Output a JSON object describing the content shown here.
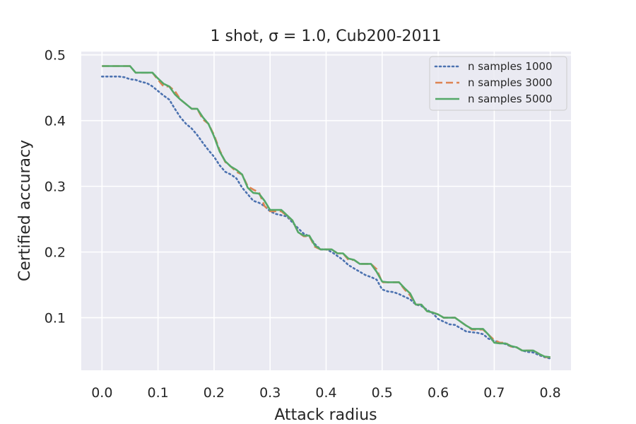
{
  "chart_data": {
    "type": "line",
    "title": "1 shot, σ = 1.0, Cub200-2011",
    "xlabel": "Attack radius",
    "ylabel": "Certified accuracy",
    "xlim": [
      -0.037,
      0.837
    ],
    "ylim": [
      0.02,
      0.505
    ],
    "xticks": [
      "0.0",
      "0.1",
      "0.2",
      "0.3",
      "0.4",
      "0.5",
      "0.6",
      "0.7",
      "0.8"
    ],
    "yticks": [
      "0.1",
      "0.2",
      "0.3",
      "0.4",
      "0.5"
    ],
    "grid": true,
    "legend_position": "top-right",
    "series": [
      {
        "name": "n samples 1000",
        "color": "#4c72b0",
        "style": "dotted",
        "x": [
          0.0,
          0.01,
          0.02,
          0.03,
          0.04,
          0.05,
          0.06,
          0.07,
          0.08,
          0.09,
          0.1,
          0.11,
          0.12,
          0.13,
          0.14,
          0.15,
          0.16,
          0.17,
          0.18,
          0.19,
          0.2,
          0.21,
          0.22,
          0.23,
          0.24,
          0.25,
          0.26,
          0.27,
          0.28,
          0.29,
          0.3,
          0.31,
          0.32,
          0.33,
          0.34,
          0.35,
          0.36,
          0.37,
          0.38,
          0.39,
          0.4,
          0.41,
          0.42,
          0.43,
          0.44,
          0.45,
          0.46,
          0.47,
          0.48,
          0.49,
          0.5,
          0.51,
          0.52,
          0.53,
          0.54,
          0.55,
          0.56,
          0.57,
          0.58,
          0.59,
          0.6,
          0.61,
          0.62,
          0.63,
          0.64,
          0.65,
          0.66,
          0.67,
          0.68,
          0.69,
          0.7,
          0.71,
          0.72,
          0.73,
          0.74,
          0.75,
          0.76,
          0.77,
          0.78,
          0.79,
          0.8
        ],
        "y": [
          0.467,
          0.467,
          0.467,
          0.467,
          0.466,
          0.463,
          0.462,
          0.459,
          0.457,
          0.452,
          0.445,
          0.438,
          0.432,
          0.418,
          0.405,
          0.395,
          0.388,
          0.378,
          0.366,
          0.355,
          0.345,
          0.332,
          0.322,
          0.318,
          0.312,
          0.298,
          0.288,
          0.278,
          0.275,
          0.27,
          0.262,
          0.258,
          0.256,
          0.254,
          0.245,
          0.236,
          0.228,
          0.224,
          0.212,
          0.204,
          0.204,
          0.2,
          0.194,
          0.188,
          0.18,
          0.175,
          0.17,
          0.165,
          0.162,
          0.158,
          0.143,
          0.14,
          0.139,
          0.136,
          0.132,
          0.128,
          0.12,
          0.118,
          0.112,
          0.107,
          0.098,
          0.094,
          0.09,
          0.089,
          0.084,
          0.079,
          0.078,
          0.077,
          0.075,
          0.068,
          0.065,
          0.062,
          0.06,
          0.056,
          0.055,
          0.05,
          0.048,
          0.047,
          0.043,
          0.04,
          0.038
        ]
      },
      {
        "name": "n samples 3000",
        "color": "#dd8452",
        "style": "dashed",
        "x": [
          0.0,
          0.01,
          0.02,
          0.03,
          0.04,
          0.05,
          0.06,
          0.07,
          0.08,
          0.09,
          0.1,
          0.11,
          0.12,
          0.13,
          0.14,
          0.15,
          0.16,
          0.17,
          0.18,
          0.19,
          0.2,
          0.21,
          0.22,
          0.23,
          0.24,
          0.25,
          0.26,
          0.27,
          0.28,
          0.29,
          0.3,
          0.31,
          0.32,
          0.33,
          0.34,
          0.35,
          0.36,
          0.37,
          0.38,
          0.39,
          0.4,
          0.41,
          0.42,
          0.43,
          0.44,
          0.45,
          0.46,
          0.47,
          0.48,
          0.49,
          0.5,
          0.51,
          0.52,
          0.53,
          0.54,
          0.55,
          0.56,
          0.57,
          0.58,
          0.59,
          0.6,
          0.61,
          0.62,
          0.63,
          0.64,
          0.65,
          0.66,
          0.67,
          0.68,
          0.69,
          0.7,
          0.71,
          0.72,
          0.73,
          0.74,
          0.75,
          0.76,
          0.77,
          0.78,
          0.79,
          0.8
        ],
        "y": [
          0.483,
          0.483,
          0.483,
          0.483,
          0.483,
          0.483,
          0.473,
          0.473,
          0.473,
          0.473,
          0.462,
          0.452,
          0.452,
          0.445,
          0.432,
          0.425,
          0.418,
          0.418,
          0.402,
          0.395,
          0.378,
          0.355,
          0.337,
          0.33,
          0.322,
          0.318,
          0.3,
          0.295,
          0.291,
          0.27,
          0.262,
          0.262,
          0.262,
          0.255,
          0.248,
          0.23,
          0.224,
          0.224,
          0.208,
          0.204,
          0.204,
          0.204,
          0.198,
          0.198,
          0.188,
          0.188,
          0.182,
          0.182,
          0.182,
          0.174,
          0.154,
          0.154,
          0.154,
          0.154,
          0.143,
          0.134,
          0.12,
          0.12,
          0.11,
          0.108,
          0.105,
          0.1,
          0.1,
          0.1,
          0.094,
          0.088,
          0.082,
          0.082,
          0.082,
          0.074,
          0.066,
          0.062,
          0.062,
          0.056,
          0.055,
          0.05,
          0.05,
          0.05,
          0.045,
          0.04,
          0.04
        ]
      },
      {
        "name": "n samples 5000",
        "color": "#55a868",
        "style": "solid",
        "x": [
          0.0,
          0.01,
          0.02,
          0.03,
          0.04,
          0.05,
          0.06,
          0.07,
          0.08,
          0.09,
          0.1,
          0.11,
          0.12,
          0.13,
          0.14,
          0.15,
          0.16,
          0.17,
          0.18,
          0.19,
          0.2,
          0.21,
          0.22,
          0.23,
          0.24,
          0.25,
          0.26,
          0.27,
          0.28,
          0.29,
          0.3,
          0.31,
          0.32,
          0.33,
          0.34,
          0.35,
          0.36,
          0.37,
          0.38,
          0.39,
          0.4,
          0.41,
          0.42,
          0.43,
          0.44,
          0.45,
          0.46,
          0.47,
          0.48,
          0.49,
          0.5,
          0.51,
          0.52,
          0.53,
          0.54,
          0.55,
          0.56,
          0.57,
          0.58,
          0.59,
          0.6,
          0.61,
          0.62,
          0.63,
          0.64,
          0.65,
          0.66,
          0.67,
          0.68,
          0.69,
          0.7,
          0.71,
          0.72,
          0.73,
          0.74,
          0.75,
          0.76,
          0.77,
          0.78,
          0.79,
          0.8
        ],
        "y": [
          0.483,
          0.483,
          0.483,
          0.483,
          0.483,
          0.483,
          0.473,
          0.473,
          0.473,
          0.473,
          0.464,
          0.456,
          0.452,
          0.44,
          0.432,
          0.425,
          0.418,
          0.418,
          0.405,
          0.395,
          0.376,
          0.353,
          0.338,
          0.33,
          0.325,
          0.318,
          0.298,
          0.29,
          0.289,
          0.278,
          0.264,
          0.264,
          0.264,
          0.256,
          0.248,
          0.23,
          0.225,
          0.225,
          0.21,
          0.204,
          0.204,
          0.204,
          0.198,
          0.198,
          0.19,
          0.188,
          0.182,
          0.182,
          0.182,
          0.17,
          0.155,
          0.154,
          0.154,
          0.154,
          0.145,
          0.137,
          0.12,
          0.12,
          0.11,
          0.108,
          0.105,
          0.1,
          0.1,
          0.1,
          0.094,
          0.088,
          0.083,
          0.083,
          0.083,
          0.074,
          0.062,
          0.061,
          0.061,
          0.057,
          0.055,
          0.05,
          0.05,
          0.05,
          0.045,
          0.041,
          0.04
        ]
      }
    ]
  }
}
